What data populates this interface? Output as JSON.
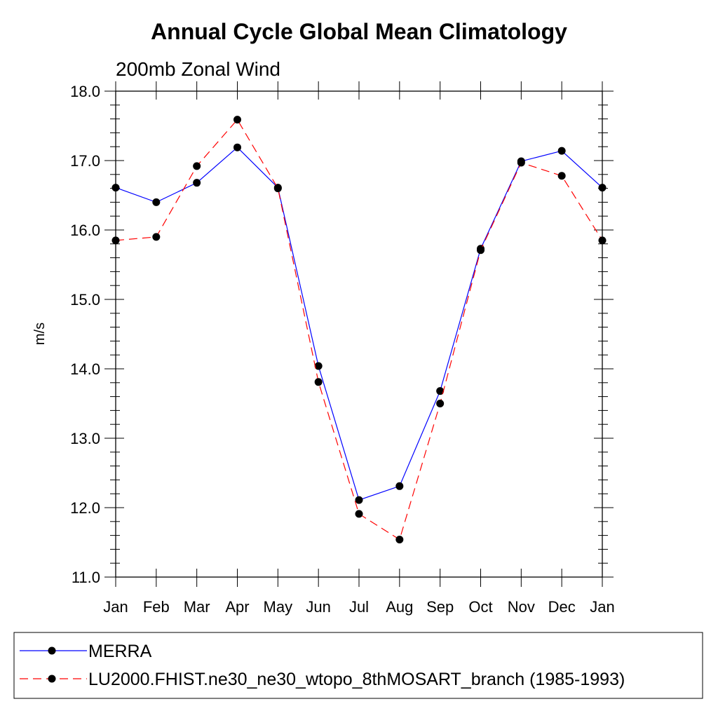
{
  "chart_data": {
    "type": "line",
    "title": "Annual Cycle Global Mean Climatology",
    "subtitle": "200mb Zonal Wind",
    "ylabel": "m/s",
    "xlabel": "",
    "categories": [
      "Jan",
      "Feb",
      "Mar",
      "Apr",
      "May",
      "Jun",
      "Jul",
      "Aug",
      "Sep",
      "Oct",
      "Nov",
      "Dec",
      "Jan"
    ],
    "ylim": [
      11.0,
      18.0
    ],
    "y_ticks": [
      "11.0",
      "12.0",
      "13.0",
      "14.0",
      "15.0",
      "16.0",
      "17.0",
      "18.0"
    ],
    "grid": false,
    "legend_position": "bottom",
    "series": [
      {
        "name": "MERRA",
        "color": "#0000ff",
        "line_style": "solid",
        "marker": "filled-circle",
        "values": [
          16.61,
          16.4,
          16.68,
          17.19,
          16.61,
          14.04,
          12.11,
          12.31,
          13.68,
          15.73,
          16.99,
          17.14,
          16.61
        ]
      },
      {
        "name": "LU2000.FHIST.ne30_ne30_wtopo_8thMOSART_branch (1985-1993)",
        "color": "#ff0000",
        "line_style": "dashed",
        "marker": "filled-circle",
        "values": [
          15.85,
          15.9,
          16.92,
          17.59,
          16.6,
          13.81,
          11.91,
          11.54,
          13.5,
          15.71,
          16.97,
          16.78,
          15.85
        ]
      }
    ]
  }
}
